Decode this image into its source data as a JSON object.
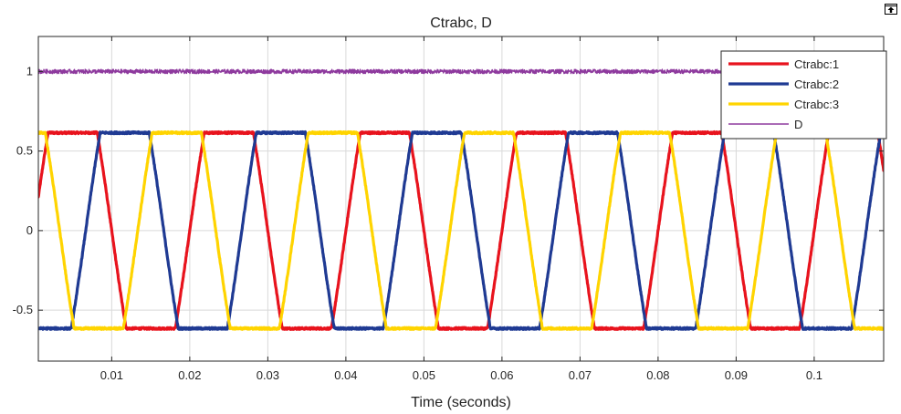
{
  "window": {
    "undock_icon": "undock-arrow-icon"
  },
  "chart_data": {
    "type": "line",
    "title": "Ctrabc, D",
    "xlabel": "Time (seconds)",
    "ylabel": "",
    "xlim": [
      0.0006,
      0.1089
    ],
    "ylim": [
      -0.82,
      1.22
    ],
    "x_ticks": [
      0.01,
      0.02,
      0.03,
      0.04,
      0.05,
      0.06,
      0.07,
      0.08,
      0.09,
      0.1
    ],
    "x_tick_labels": [
      "0.01",
      "0.02",
      "0.03",
      "0.04",
      "0.05",
      "0.06",
      "0.07",
      "0.08",
      "0.09",
      "0.1"
    ],
    "y_ticks": [
      -0.5,
      0,
      0.5,
      1
    ],
    "y_tick_labels": [
      "-0.5",
      "0",
      "0.5",
      "1"
    ],
    "grid": true,
    "legend_position": "top-right",
    "frequency_hz": 50,
    "series": [
      {
        "name": "Ctrabc:1",
        "color": "#e8131d",
        "waveform": "clipped-sine",
        "amplitude": 0.615,
        "phase_deg": 0
      },
      {
        "name": "Ctrabc:2",
        "color": "#1f3a93",
        "waveform": "clipped-sine",
        "amplitude": 0.615,
        "phase_deg": -120
      },
      {
        "name": "Ctrabc:3",
        "color": "#ffd400",
        "waveform": "clipped-sine",
        "amplitude": 0.615,
        "phase_deg": 120
      },
      {
        "name": "D",
        "color": "#8e3a9e",
        "waveform": "constant",
        "value": 1.0
      }
    ]
  }
}
